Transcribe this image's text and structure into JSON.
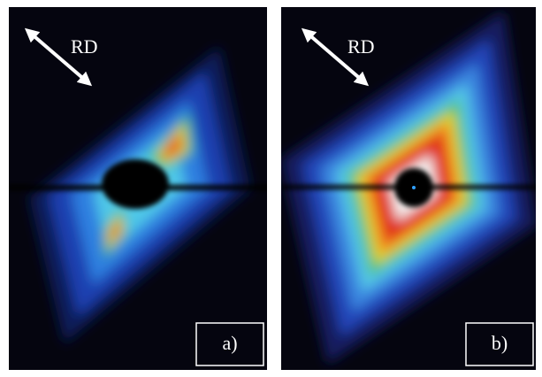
{
  "panels": [
    {
      "arrow_label": "RD",
      "panel_label": "a)"
    },
    {
      "arrow_label": "RD",
      "panel_label": "b)"
    }
  ]
}
